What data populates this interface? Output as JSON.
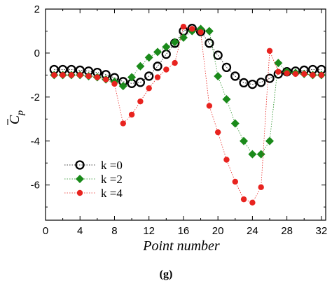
{
  "caption": "(g)",
  "chart_data": {
    "type": "scatter",
    "xlabel": "Point number",
    "ylabel": "C",
    "ylabel_subscript": "p",
    "xlim": [
      0,
      32.5
    ],
    "ylim": [
      -7.6,
      2
    ],
    "xticks": [
      0,
      4,
      8,
      12,
      16,
      20,
      24,
      28,
      32
    ],
    "yticks": [
      2,
      0,
      -2,
      -4,
      -6
    ],
    "legend_position": "bottom-left",
    "series": [
      {
        "name": "k =0",
        "marker": "open-circle",
        "color": "#000000",
        "x": [
          1,
          2,
          3,
          4,
          5,
          6,
          7,
          8,
          9,
          10,
          11,
          12,
          13,
          14,
          15,
          16,
          17,
          18,
          19,
          20,
          21,
          22,
          23,
          24,
          25,
          26,
          27,
          28,
          29,
          30,
          31,
          32
        ],
        "y": [
          -0.75,
          -0.75,
          -0.75,
          -0.78,
          -0.82,
          -0.88,
          -0.98,
          -1.12,
          -1.3,
          -1.38,
          -1.33,
          -1.05,
          -0.6,
          -0.05,
          0.45,
          1.0,
          1.12,
          0.98,
          0.45,
          -0.1,
          -0.65,
          -1.05,
          -1.35,
          -1.42,
          -1.33,
          -1.15,
          -0.95,
          -0.85,
          -0.82,
          -0.78,
          -0.75,
          -0.75
        ]
      },
      {
        "name": "k =2",
        "marker": "diamond",
        "color": "#1a8a1a",
        "x": [
          1,
          2,
          3,
          4,
          5,
          6,
          7,
          8,
          9,
          10,
          11,
          12,
          13,
          14,
          15,
          16,
          17,
          18,
          19,
          20,
          21,
          22,
          23,
          24,
          25,
          26,
          27,
          28,
          29,
          30,
          31,
          32
        ],
        "y": [
          -1.0,
          -1.0,
          -1.0,
          -1.0,
          -1.05,
          -1.1,
          -1.2,
          -1.3,
          -1.5,
          -1.1,
          -0.6,
          -0.2,
          0.05,
          0.28,
          0.5,
          0.7,
          1.0,
          1.1,
          1.0,
          -1.05,
          -2.1,
          -3.2,
          -4.0,
          -4.6,
          -4.6,
          -4.0,
          -0.45,
          -0.85,
          -0.9,
          -0.95,
          -1.0,
          -1.0
        ]
      },
      {
        "name": "k =4",
        "marker": "filled-circle",
        "color": "#e8231f",
        "x": [
          1,
          2,
          3,
          4,
          5,
          6,
          7,
          8,
          9,
          10,
          11,
          12,
          13,
          14,
          15,
          16,
          17,
          18,
          19,
          20,
          21,
          22,
          23,
          24,
          25,
          26,
          27,
          28,
          29,
          30,
          31,
          32
        ],
        "y": [
          -1.0,
          -1.0,
          -1.0,
          -1.0,
          -1.05,
          -1.1,
          -1.2,
          -1.4,
          -3.2,
          -2.8,
          -2.2,
          -1.6,
          -1.1,
          -0.75,
          -0.45,
          1.2,
          1.1,
          0.95,
          -2.4,
          -3.6,
          -4.85,
          -5.85,
          -6.65,
          -6.8,
          -6.1,
          0.1,
          -0.85,
          -0.92,
          -0.95,
          -0.95,
          -1.0,
          -1.0
        ]
      }
    ]
  }
}
